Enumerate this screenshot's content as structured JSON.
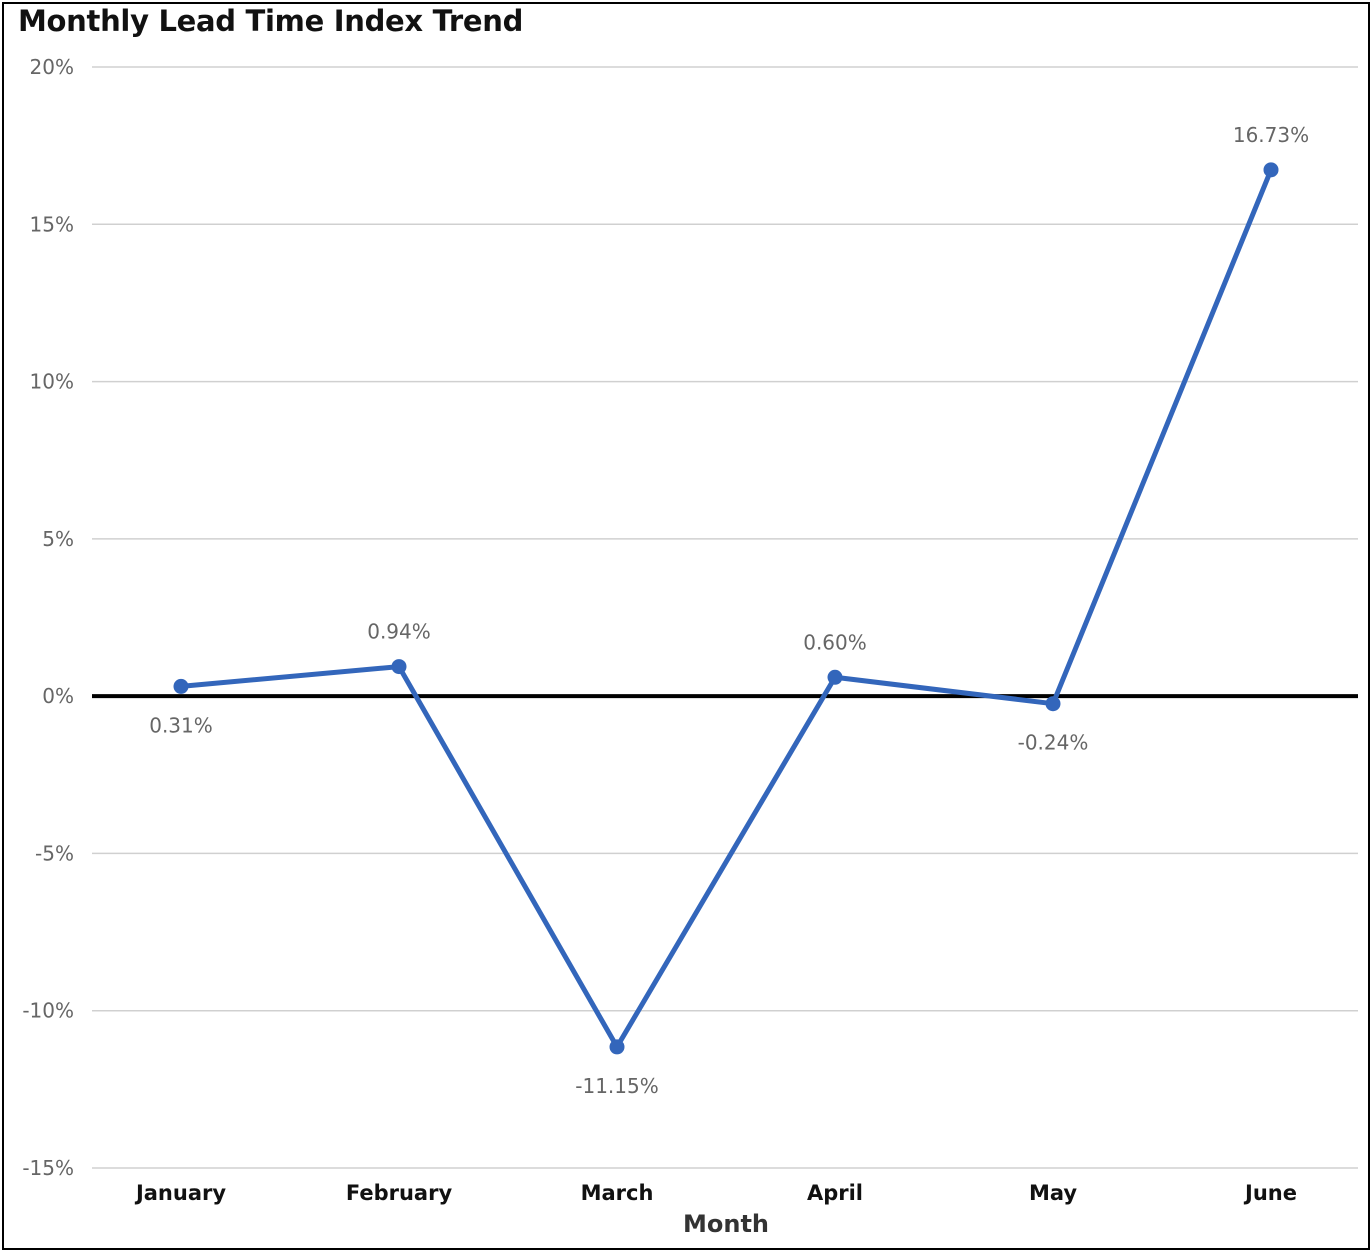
{
  "chart_data": {
    "type": "line",
    "title": "Monthly Lead Time Index Trend",
    "xlabel": "Month",
    "ylabel": "",
    "categories": [
      "January",
      "February",
      "March",
      "April",
      "May",
      "June"
    ],
    "series": [
      {
        "values": [
          0.31,
          0.94,
          -11.15,
          0.6,
          -0.24,
          16.73
        ],
        "data_labels": [
          "0.31%",
          "0.94%",
          "-11.15%",
          "0.60%",
          "-0.24%",
          "16.73%"
        ]
      }
    ],
    "ylim": [
      -15,
      20
    ],
    "yticks": [
      20,
      15,
      10,
      5,
      0,
      -5,
      -10,
      -15
    ],
    "ytick_labels": [
      "20%",
      "15%",
      "10%",
      "5%",
      "0%",
      "-5%",
      "-10%",
      "-15%"
    ],
    "grid": true,
    "zero_line": true,
    "colors": {
      "series": "#3366bb",
      "grid": "#d0d0d0",
      "zero_line": "#000000"
    }
  }
}
